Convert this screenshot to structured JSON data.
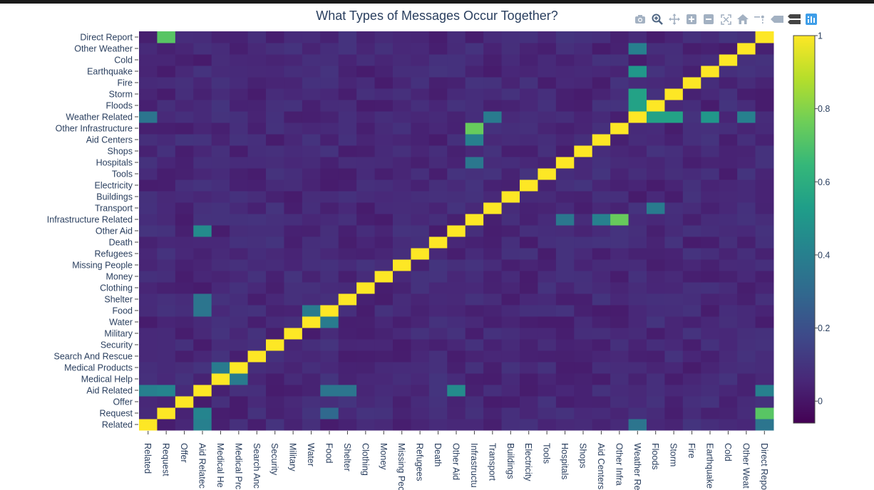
{
  "chart_title": "What Types of Messages Occur Together?",
  "modebar": [
    {
      "name": "camera-icon",
      "label": "Download plot as a png"
    },
    {
      "name": "zoom-icon",
      "label": "Zoom"
    },
    {
      "name": "pan-icon",
      "label": "Pan"
    },
    {
      "name": "zoom-in-icon",
      "label": "Zoom in"
    },
    {
      "name": "zoom-out-icon",
      "label": "Zoom out"
    },
    {
      "name": "autoscale-icon",
      "label": "Autoscale"
    },
    {
      "name": "home-icon",
      "label": "Reset axes"
    },
    {
      "name": "spike-lines-icon",
      "label": "Toggle Spike Lines"
    },
    {
      "name": "hover-closest-icon",
      "label": "Show closest data on hover"
    },
    {
      "name": "hover-compare-icon",
      "label": "Compare data on hover"
    },
    {
      "name": "plotly-logo-icon",
      "label": "Produced with Plotly"
    }
  ],
  "chart_data": {
    "type": "heatmap",
    "title": "What Types of Messages Occur Together?",
    "colorscale": "viridis",
    "colorscale_stops": [
      "#440154",
      "#482878",
      "#3e4989",
      "#31688e",
      "#26828e",
      "#1f9e89",
      "#35b779",
      "#6ece58",
      "#b5de2b",
      "#fde725"
    ],
    "zmin": -0.06,
    "zmax": 1,
    "colorbar_ticks": [
      0,
      0.2,
      0.4,
      0.6,
      0.8,
      1
    ],
    "labels": [
      "Related",
      "Request",
      "Offer",
      "Aid Related",
      "Medical Help",
      "Medical Products",
      "Search And Rescue",
      "Security",
      "Military",
      "Water",
      "Food",
      "Shelter",
      "Clothing",
      "Money",
      "Missing People",
      "Refugees",
      "Death",
      "Other Aid",
      "Infrastructure Related",
      "Transport",
      "Buildings",
      "Electricity",
      "Tools",
      "Hospitals",
      "Shops",
      "Aid Centers",
      "Other Infrastructure",
      "Weather Related",
      "Floods",
      "Storm",
      "Fire",
      "Earthquake",
      "Cold",
      "Other Weather",
      "Direct Report"
    ],
    "x_tick_labels": [
      "Related",
      "Request",
      "Offer",
      "Aid Relatec",
      "Medical He",
      "Medical Prc",
      "Search Anc",
      "Security",
      "Military",
      "Water",
      "Food",
      "Shelter",
      "Clothing",
      "Money",
      "Missing Pec",
      "Refugees",
      "Death",
      "Other Aid",
      "Infrastructu",
      "Transport",
      "Buildings",
      "Electricity",
      "Tools",
      "Hospitals",
      "Shops",
      "Aid Centers",
      "Other Infra",
      "Weather Re",
      "Floods",
      "Storm",
      "Fire",
      "Earthquake",
      "Cold",
      "Other Weat",
      "Direct Repo"
    ],
    "diagonal_value": 1,
    "background_value": 0.06,
    "notable_values": [
      {
        "row": "Related",
        "col": "Aid Related",
        "value": 0.4
      },
      {
        "row": "Related",
        "col": "Weather Related",
        "value": 0.35
      },
      {
        "row": "Related",
        "col": "Direct Report",
        "value": 0.35
      },
      {
        "row": "Request",
        "col": "Aid Related",
        "value": 0.42
      },
      {
        "row": "Request",
        "col": "Food",
        "value": 0.3
      },
      {
        "row": "Request",
        "col": "Direct Report",
        "value": 0.72
      },
      {
        "row": "Aid Related",
        "col": "Related",
        "value": 0.4
      },
      {
        "row": "Aid Related",
        "col": "Request",
        "value": 0.42
      },
      {
        "row": "Aid Related",
        "col": "Other Aid",
        "value": 0.45
      },
      {
        "row": "Aid Related",
        "col": "Food",
        "value": 0.35
      },
      {
        "row": "Aid Related",
        "col": "Shelter",
        "value": 0.35
      },
      {
        "row": "Aid Related",
        "col": "Direct Report",
        "value": 0.4
      },
      {
        "row": "Medical Help",
        "col": "Medical Products",
        "value": 0.38
      },
      {
        "row": "Medical Products",
        "col": "Medical Help",
        "value": 0.38
      },
      {
        "row": "Water",
        "col": "Food",
        "value": 0.38
      },
      {
        "row": "Food",
        "col": "Water",
        "value": 0.38
      },
      {
        "row": "Food",
        "col": "Aid Related",
        "value": 0.35
      },
      {
        "row": "Shelter",
        "col": "Aid Related",
        "value": 0.35
      },
      {
        "row": "Other Aid",
        "col": "Aid Related",
        "value": 0.45
      },
      {
        "row": "Infrastructure Related",
        "col": "Hospitals",
        "value": 0.36
      },
      {
        "row": "Infrastructure Related",
        "col": "Aid Centers",
        "value": 0.4
      },
      {
        "row": "Infrastructure Related",
        "col": "Other Infrastructure",
        "value": 0.75
      },
      {
        "row": "Transport",
        "col": "Floods",
        "value": 0.38
      },
      {
        "row": "Other Infrastructure",
        "col": "Infrastructure Related",
        "value": 0.75
      },
      {
        "row": "Aid Centers",
        "col": "Infrastructure Related",
        "value": 0.4
      },
      {
        "row": "Hospitals",
        "col": "Infrastructure Related",
        "value": 0.36
      },
      {
        "row": "Weather Related",
        "col": "Related",
        "value": 0.35
      },
      {
        "row": "Weather Related",
        "col": "Transport",
        "value": 0.38
      },
      {
        "row": "Weather Related",
        "col": "Floods",
        "value": 0.55
      },
      {
        "row": "Weather Related",
        "col": "Storm",
        "value": 0.55
      },
      {
        "row": "Weather Related",
        "col": "Earthquake",
        "value": 0.5
      },
      {
        "row": "Weather Related",
        "col": "Other Weather",
        "value": 0.4
      },
      {
        "row": "Floods",
        "col": "Weather Related",
        "value": 0.55
      },
      {
        "row": "Storm",
        "col": "Weather Related",
        "value": 0.55
      },
      {
        "row": "Earthquake",
        "col": "Weather Related",
        "value": 0.5
      },
      {
        "row": "Other Weather",
        "col": "Weather Related",
        "value": 0.4
      },
      {
        "row": "Direct Report",
        "col": "Request",
        "value": 0.72
      }
    ]
  }
}
